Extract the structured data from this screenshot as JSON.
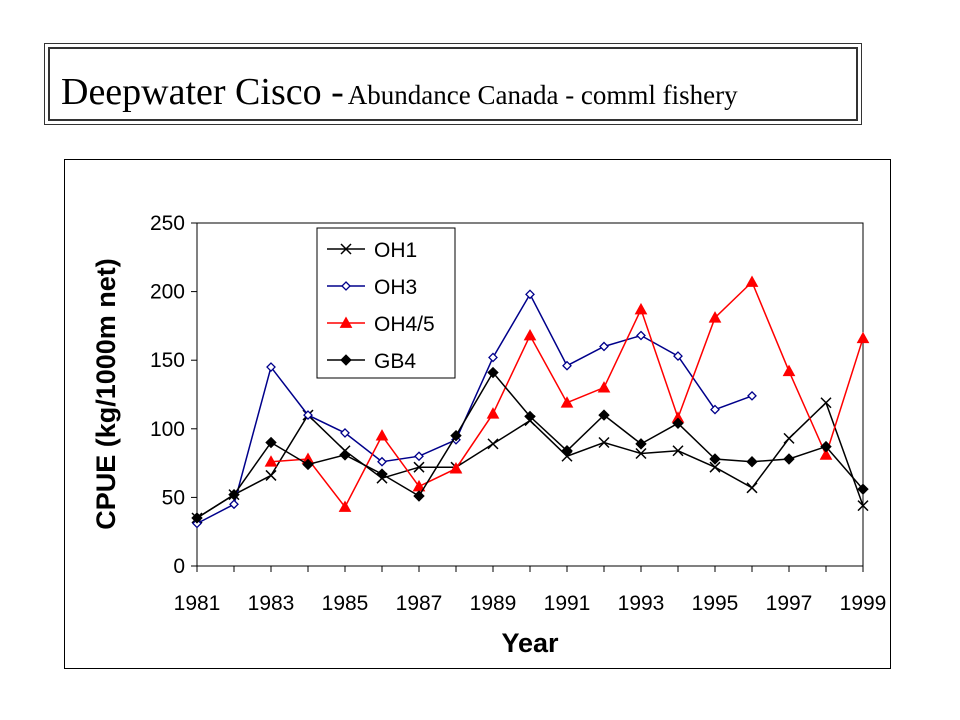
{
  "header": {
    "title_main": "Deepwater Cisco -",
    "title_sub": "Abundance Canada - comml fishery"
  },
  "chart_data": {
    "type": "line",
    "title": "",
    "xlabel": "Year",
    "ylabel": "CPUE (kg/1000m net)",
    "xlim": [
      1981,
      1999
    ],
    "ylim": [
      0,
      250
    ],
    "x_ticks": [
      "1981",
      "1983",
      "1985",
      "1987",
      "1989",
      "1991",
      "1993",
      "1995",
      "1997",
      "1999"
    ],
    "y_ticks": [
      "0",
      "50",
      "100",
      "150",
      "200",
      "250"
    ],
    "grid": false,
    "legend_position": "top-left inside plot",
    "x": [
      1981,
      1982,
      1983,
      1984,
      1985,
      1986,
      1987,
      1988,
      1989,
      1990,
      1991,
      1992,
      1993,
      1994,
      1995,
      1996,
      1997,
      1998,
      1999
    ],
    "series": [
      {
        "name": "OH1",
        "color": "#000000",
        "marker": "x",
        "values": [
          35,
          52,
          66,
          110,
          84,
          64,
          72,
          72,
          89,
          106,
          80,
          90,
          82,
          84,
          72,
          57,
          93,
          119,
          44
        ]
      },
      {
        "name": "OH3",
        "color": "#00008B",
        "marker": "diamond-open",
        "values": [
          31,
          45,
          145,
          110,
          97,
          76,
          80,
          92,
          152,
          198,
          146,
          160,
          168,
          153,
          114,
          124,
          null,
          null,
          null
        ]
      },
      {
        "name": "OH4/5",
        "color": "#FF0000",
        "marker": "triangle",
        "values": [
          null,
          null,
          76,
          78,
          43,
          95,
          58,
          71,
          111,
          168,
          119,
          130,
          187,
          108,
          181,
          207,
          142,
          81,
          166
        ]
      },
      {
        "name": "GB4",
        "color": "#000000",
        "marker": "diamond-filled",
        "values": [
          35,
          52,
          90,
          74,
          81,
          67,
          51,
          95,
          141,
          109,
          84,
          110,
          89,
          104,
          78,
          76,
          78,
          87,
          56
        ]
      }
    ]
  }
}
